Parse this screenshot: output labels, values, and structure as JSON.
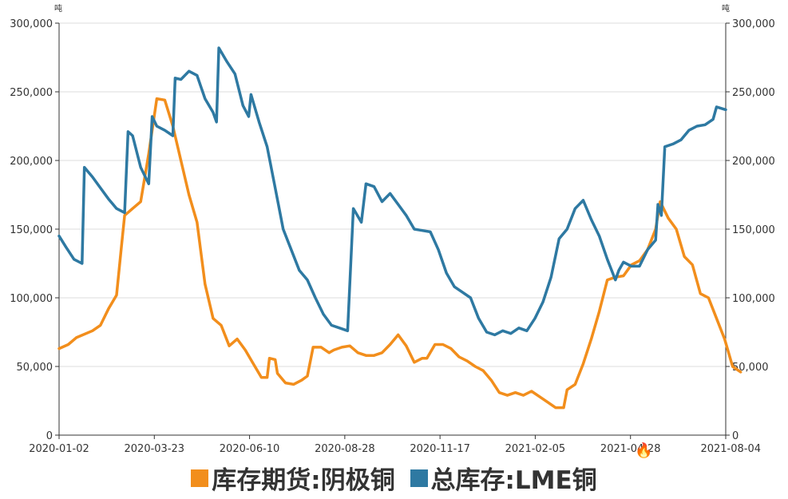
{
  "chart_data": {
    "type": "line",
    "unit_left": "吨",
    "unit_right": "吨",
    "ylim": [
      0,
      300000
    ],
    "yticks": [
      "0",
      "50,000",
      "100,000",
      "150,000",
      "200,000",
      "250,000",
      "300,000"
    ],
    "ytick_values": [
      0,
      50000,
      100000,
      150000,
      200000,
      250000,
      300000
    ],
    "xlim": [
      "2020-01-02",
      "2021-08-04"
    ],
    "xticks": [
      "2020-01-02",
      "2020-03-23",
      "2020-06-10",
      "2020-08-28",
      "2020-11-17",
      "2021-02-05",
      "2021-04-28",
      "2021-08-04"
    ],
    "grid": true,
    "legend_position": "bottom",
    "series": [
      {
        "name": "库存期货:阴极铜",
        "color": "#f28e1c",
        "points": [
          [
            "2020-01-02",
            63000
          ],
          [
            "2020-01-10",
            66000
          ],
          [
            "2020-01-17",
            71000
          ],
          [
            "2020-01-31",
            76000
          ],
          [
            "2020-02-07",
            80000
          ],
          [
            "2020-02-14",
            92000
          ],
          [
            "2020-02-21",
            102000
          ],
          [
            "2020-02-25",
            135000
          ],
          [
            "2020-02-28",
            160000
          ],
          [
            "2020-03-06",
            165000
          ],
          [
            "2020-03-13",
            170000
          ],
          [
            "2020-03-20",
            205000
          ],
          [
            "2020-03-27",
            245000
          ],
          [
            "2020-04-03",
            244000
          ],
          [
            "2020-04-10",
            225000
          ],
          [
            "2020-04-17",
            200000
          ],
          [
            "2020-04-24",
            175000
          ],
          [
            "2020-05-01",
            155000
          ],
          [
            "2020-05-08",
            110000
          ],
          [
            "2020-05-15",
            85000
          ],
          [
            "2020-05-22",
            80000
          ],
          [
            "2020-05-29",
            65000
          ],
          [
            "2020-06-05",
            70000
          ],
          [
            "2020-06-12",
            62000
          ],
          [
            "2020-06-19",
            52000
          ],
          [
            "2020-06-26",
            42000
          ],
          [
            "2020-07-01",
            42000
          ],
          [
            "2020-07-03",
            56000
          ],
          [
            "2020-07-08",
            55000
          ],
          [
            "2020-07-10",
            45000
          ],
          [
            "2020-07-17",
            38000
          ],
          [
            "2020-07-24",
            37000
          ],
          [
            "2020-07-31",
            40000
          ],
          [
            "2020-08-05",
            43000
          ],
          [
            "2020-08-10",
            64000
          ],
          [
            "2020-08-17",
            64000
          ],
          [
            "2020-08-24",
            60000
          ],
          [
            "2020-08-28",
            62000
          ],
          [
            "2020-09-04",
            64000
          ],
          [
            "2020-09-11",
            65000
          ],
          [
            "2020-09-18",
            60000
          ],
          [
            "2020-09-25",
            58000
          ],
          [
            "2020-10-02",
            58000
          ],
          [
            "2020-10-09",
            60000
          ],
          [
            "2020-10-16",
            66000
          ],
          [
            "2020-10-23",
            73000
          ],
          [
            "2020-10-30",
            65000
          ],
          [
            "2020-11-06",
            53000
          ],
          [
            "2020-11-13",
            56000
          ],
          [
            "2020-11-17",
            56000
          ],
          [
            "2020-11-24",
            66000
          ],
          [
            "2020-12-01",
            66000
          ],
          [
            "2020-12-08",
            63000
          ],
          [
            "2020-12-15",
            57000
          ],
          [
            "2020-12-22",
            54000
          ],
          [
            "2020-12-29",
            50000
          ],
          [
            "2021-01-05",
            47000
          ],
          [
            "2021-01-12",
            40000
          ],
          [
            "2021-01-19",
            31000
          ],
          [
            "2021-01-26",
            29000
          ],
          [
            "2021-02-02",
            31000
          ],
          [
            "2021-02-09",
            29000
          ],
          [
            "2021-02-16",
            32000
          ],
          [
            "2021-02-23",
            28000
          ],
          [
            "2021-03-02",
            24000
          ],
          [
            "2021-03-09",
            20000
          ],
          [
            "2021-03-16",
            20000
          ],
          [
            "2021-03-19",
            33000
          ],
          [
            "2021-03-26",
            37000
          ],
          [
            "2021-04-02",
            52000
          ],
          [
            "2021-04-09",
            70000
          ],
          [
            "2021-04-16",
            90000
          ],
          [
            "2021-04-23",
            113000
          ],
          [
            "2021-04-30",
            115000
          ],
          [
            "2021-05-07",
            116000
          ],
          [
            "2021-05-14",
            124000
          ],
          [
            "2021-05-21",
            127000
          ],
          [
            "2021-05-28",
            135000
          ],
          [
            "2021-06-04",
            150000
          ],
          [
            "2021-06-08",
            170000
          ],
          [
            "2021-06-15",
            158000
          ],
          [
            "2021-06-22",
            150000
          ],
          [
            "2021-06-29",
            130000
          ],
          [
            "2021-07-06",
            124000
          ],
          [
            "2021-07-13",
            103000
          ],
          [
            "2021-07-20",
            100000
          ],
          [
            "2021-07-27",
            85000
          ],
          [
            "2021-08-03",
            70000
          ],
          [
            "2021-08-10",
            50000
          ],
          [
            "2021-08-17",
            46000
          ]
        ]
      },
      {
        "name": "总库存:LME铜",
        "color": "#2e79a2",
        "points": [
          [
            "2020-01-02",
            145000
          ],
          [
            "2020-01-08",
            137000
          ],
          [
            "2020-01-15",
            128000
          ],
          [
            "2020-01-22",
            125000
          ],
          [
            "2020-01-24",
            195000
          ],
          [
            "2020-01-31",
            188000
          ],
          [
            "2020-02-07",
            180000
          ],
          [
            "2020-02-14",
            172000
          ],
          [
            "2020-02-21",
            165000
          ],
          [
            "2020-02-28",
            162000
          ],
          [
            "2020-03-02",
            221000
          ],
          [
            "2020-03-06",
            218000
          ],
          [
            "2020-03-13",
            195000
          ],
          [
            "2020-03-20",
            183000
          ],
          [
            "2020-03-23",
            232000
          ],
          [
            "2020-03-27",
            225000
          ],
          [
            "2020-04-03",
            222000
          ],
          [
            "2020-04-10",
            218000
          ],
          [
            "2020-04-12",
            260000
          ],
          [
            "2020-04-17",
            259000
          ],
          [
            "2020-04-24",
            265000
          ],
          [
            "2020-05-01",
            262000
          ],
          [
            "2020-05-08",
            245000
          ],
          [
            "2020-05-15",
            235000
          ],
          [
            "2020-05-18",
            228000
          ],
          [
            "2020-05-20",
            282000
          ],
          [
            "2020-05-27",
            272000
          ],
          [
            "2020-06-03",
            263000
          ],
          [
            "2020-06-10",
            240000
          ],
          [
            "2020-06-15",
            232000
          ],
          [
            "2020-06-17",
            248000
          ],
          [
            "2020-06-24",
            228000
          ],
          [
            "2020-07-01",
            210000
          ],
          [
            "2020-07-08",
            180000
          ],
          [
            "2020-07-15",
            150000
          ],
          [
            "2020-07-22",
            135000
          ],
          [
            "2020-07-29",
            120000
          ],
          [
            "2020-08-05",
            113000
          ],
          [
            "2020-08-12",
            100000
          ],
          [
            "2020-08-19",
            88000
          ],
          [
            "2020-08-26",
            80000
          ],
          [
            "2020-09-02",
            78000
          ],
          [
            "2020-09-09",
            76000
          ],
          [
            "2020-09-14",
            165000
          ],
          [
            "2020-09-21",
            155000
          ],
          [
            "2020-09-25",
            183000
          ],
          [
            "2020-10-02",
            181000
          ],
          [
            "2020-10-09",
            170000
          ],
          [
            "2020-10-16",
            176000
          ],
          [
            "2020-10-23",
            168000
          ],
          [
            "2020-10-30",
            160000
          ],
          [
            "2020-11-06",
            150000
          ],
          [
            "2020-11-13",
            149000
          ],
          [
            "2020-11-20",
            148000
          ],
          [
            "2020-11-27",
            135000
          ],
          [
            "2020-12-04",
            118000
          ],
          [
            "2020-12-11",
            108000
          ],
          [
            "2020-12-18",
            104000
          ],
          [
            "2020-12-25",
            100000
          ],
          [
            "2021-01-01",
            85000
          ],
          [
            "2021-01-08",
            75000
          ],
          [
            "2021-01-15",
            73000
          ],
          [
            "2021-01-22",
            76000
          ],
          [
            "2021-01-29",
            74000
          ],
          [
            "2021-02-05",
            78000
          ],
          [
            "2021-02-12",
            76000
          ],
          [
            "2021-02-19",
            85000
          ],
          [
            "2021-02-26",
            97000
          ],
          [
            "2021-03-05",
            115000
          ],
          [
            "2021-03-12",
            143000
          ],
          [
            "2021-03-19",
            150000
          ],
          [
            "2021-03-26",
            165000
          ],
          [
            "2021-04-02",
            171000
          ],
          [
            "2021-04-09",
            157000
          ],
          [
            "2021-04-16",
            145000
          ],
          [
            "2021-04-23",
            128000
          ],
          [
            "2021-04-30",
            113000
          ],
          [
            "2021-05-03",
            120000
          ],
          [
            "2021-05-07",
            126000
          ],
          [
            "2021-05-14",
            123000
          ],
          [
            "2021-05-21",
            123000
          ],
          [
            "2021-05-28",
            135000
          ],
          [
            "2021-06-04",
            142000
          ],
          [
            "2021-06-06",
            168000
          ],
          [
            "2021-06-09",
            160000
          ],
          [
            "2021-06-12",
            210000
          ],
          [
            "2021-06-19",
            212000
          ],
          [
            "2021-06-26",
            215000
          ],
          [
            "2021-07-03",
            222000
          ],
          [
            "2021-07-10",
            225000
          ],
          [
            "2021-07-17",
            226000
          ],
          [
            "2021-07-24",
            230000
          ],
          [
            "2021-07-27",
            239000
          ],
          [
            "2021-08-04",
            237000
          ]
        ]
      }
    ]
  }
}
